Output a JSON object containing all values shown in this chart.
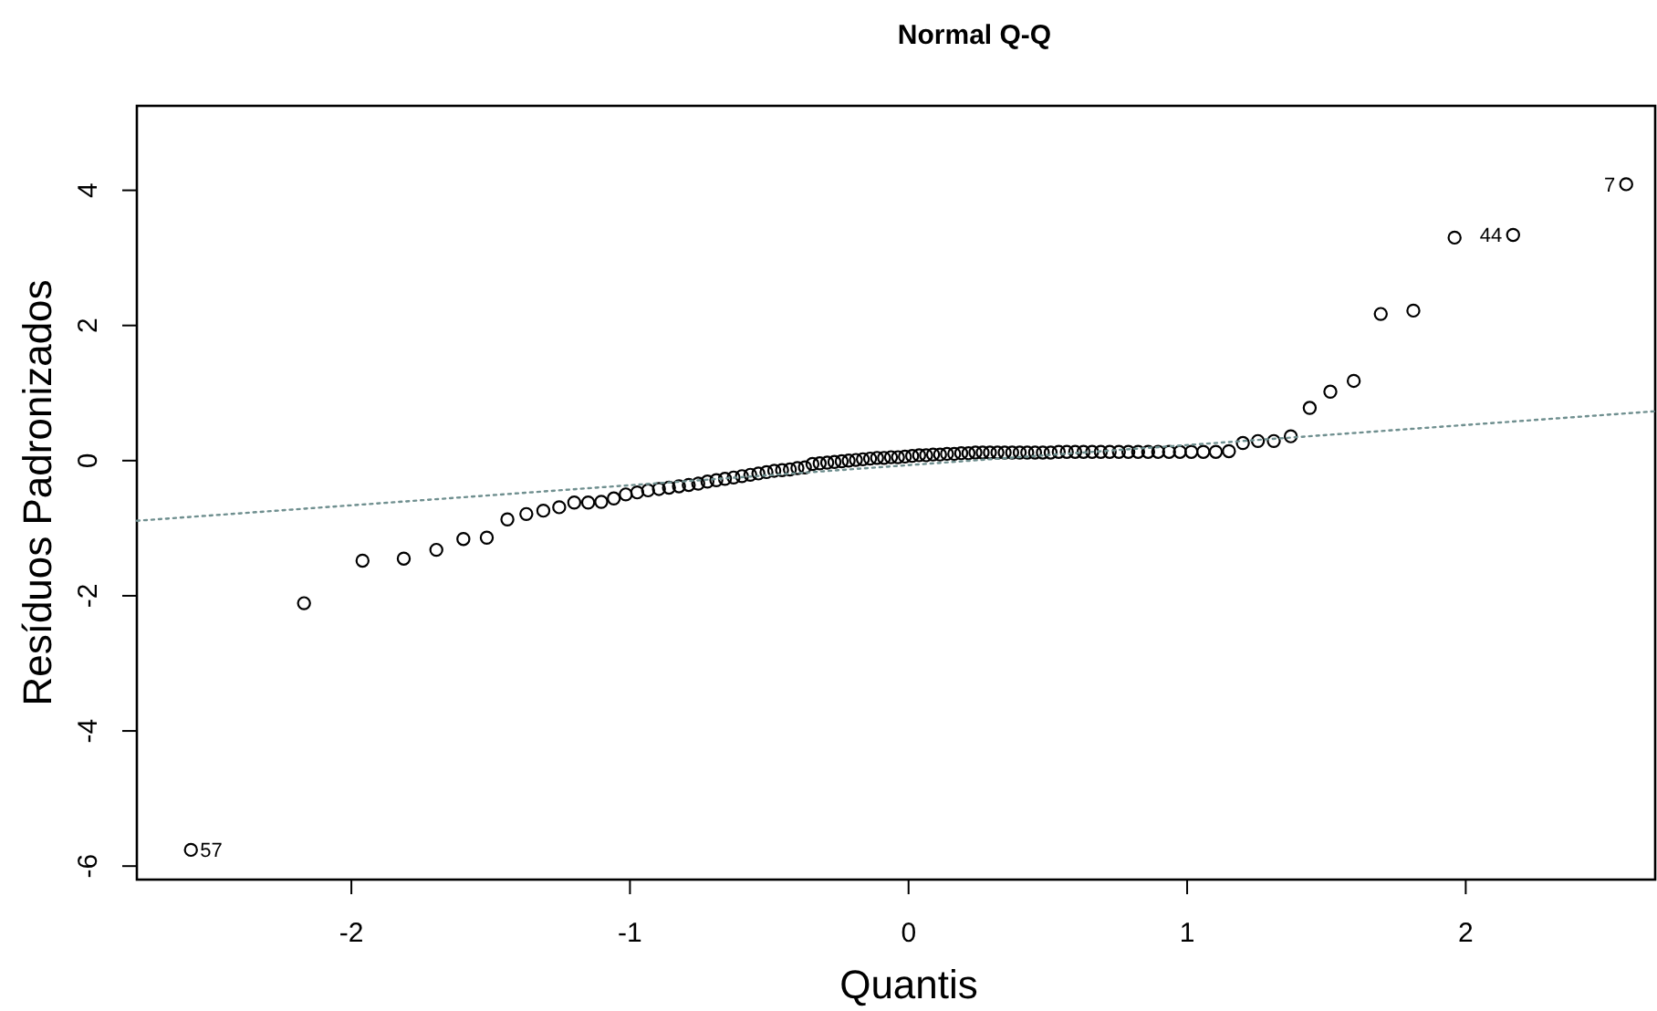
{
  "chart_data": {
    "type": "scatter",
    "title": "Normal Q-Q",
    "xlabel": "Quantis",
    "ylabel": "Resíduos Padronizados",
    "xlim": [
      -2.77,
      2.68
    ],
    "ylim": [
      -6.2,
      5.25
    ],
    "xticks": [
      -2,
      -1,
      0,
      1,
      2
    ],
    "yticks": [
      -6,
      -4,
      -2,
      0,
      2,
      4
    ],
    "grid": false,
    "series": [
      {
        "color": "#000000",
        "marker": "circle",
        "x": [
          -2.576,
          -2.17,
          -1.96,
          -1.812,
          -1.695,
          -1.598,
          -1.514,
          -1.44,
          -1.372,
          -1.311,
          -1.254,
          -1.2,
          -1.15,
          -1.103,
          -1.058,
          -1.015,
          -0.974,
          -0.935,
          -0.896,
          -0.86,
          -0.824,
          -0.789,
          -0.755,
          -0.722,
          -0.69,
          -0.659,
          -0.628,
          -0.598,
          -0.568,
          -0.539,
          -0.51,
          -0.482,
          -0.454,
          -0.426,
          -0.399,
          -0.372,
          -0.345,
          -0.319,
          -0.292,
          -0.266,
          -0.24,
          -0.215,
          -0.189,
          -0.164,
          -0.138,
          -0.113,
          -0.088,
          -0.063,
          -0.038,
          -0.013,
          0.013,
          0.038,
          0.063,
          0.088,
          0.113,
          0.138,
          0.164,
          0.189,
          0.215,
          0.24,
          0.266,
          0.292,
          0.319,
          0.345,
          0.372,
          0.399,
          0.426,
          0.454,
          0.482,
          0.51,
          0.539,
          0.568,
          0.598,
          0.628,
          0.659,
          0.69,
          0.722,
          0.755,
          0.789,
          0.824,
          0.86,
          0.896,
          0.935,
          0.974,
          1.015,
          1.058,
          1.103,
          1.15,
          1.2,
          1.254,
          1.311,
          1.372,
          1.44,
          1.514,
          1.598,
          1.695,
          1.812,
          1.96,
          2.17,
          2.576
        ],
        "values": [
          -5.76,
          -2.11,
          -1.48,
          -1.45,
          -1.32,
          -1.16,
          -1.14,
          -0.87,
          -0.79,
          -0.74,
          -0.69,
          -0.62,
          -0.62,
          -0.61,
          -0.56,
          -0.5,
          -0.47,
          -0.44,
          -0.42,
          -0.4,
          -0.38,
          -0.36,
          -0.34,
          -0.31,
          -0.29,
          -0.27,
          -0.25,
          -0.23,
          -0.21,
          -0.19,
          -0.17,
          -0.15,
          -0.14,
          -0.13,
          -0.11,
          -0.1,
          -0.05,
          -0.04,
          -0.03,
          -0.02,
          -0.01,
          0,
          0.01,
          0.02,
          0.03,
          0.04,
          0.04,
          0.05,
          0.05,
          0.06,
          0.07,
          0.08,
          0.08,
          0.09,
          0.09,
          0.1,
          0.1,
          0.11,
          0.11,
          0.12,
          0.12,
          0.12,
          0.12,
          0.12,
          0.12,
          0.12,
          0.12,
          0.12,
          0.12,
          0.12,
          0.13,
          0.13,
          0.13,
          0.13,
          0.13,
          0.13,
          0.13,
          0.13,
          0.13,
          0.13,
          0.13,
          0.13,
          0.13,
          0.13,
          0.13,
          0.13,
          0.13,
          0.14,
          0.26,
          0.29,
          0.29,
          0.36,
          0.78,
          1.02,
          1.18,
          2.17,
          2.22,
          3.3,
          3.34,
          4.09
        ]
      },
      {
        "type": "line",
        "color": "#6f8f8f",
        "line_style": "dotted",
        "x": [
          -2.77,
          2.68
        ],
        "values": [
          -0.89,
          0.73
        ]
      }
    ],
    "annotations": [
      {
        "text": "57",
        "x": -2.576,
        "y": -5.76
      },
      {
        "text": "44",
        "x": 2.17,
        "y": 3.34
      },
      {
        "text": "7",
        "x": 2.576,
        "y": 4.09
      }
    ]
  }
}
